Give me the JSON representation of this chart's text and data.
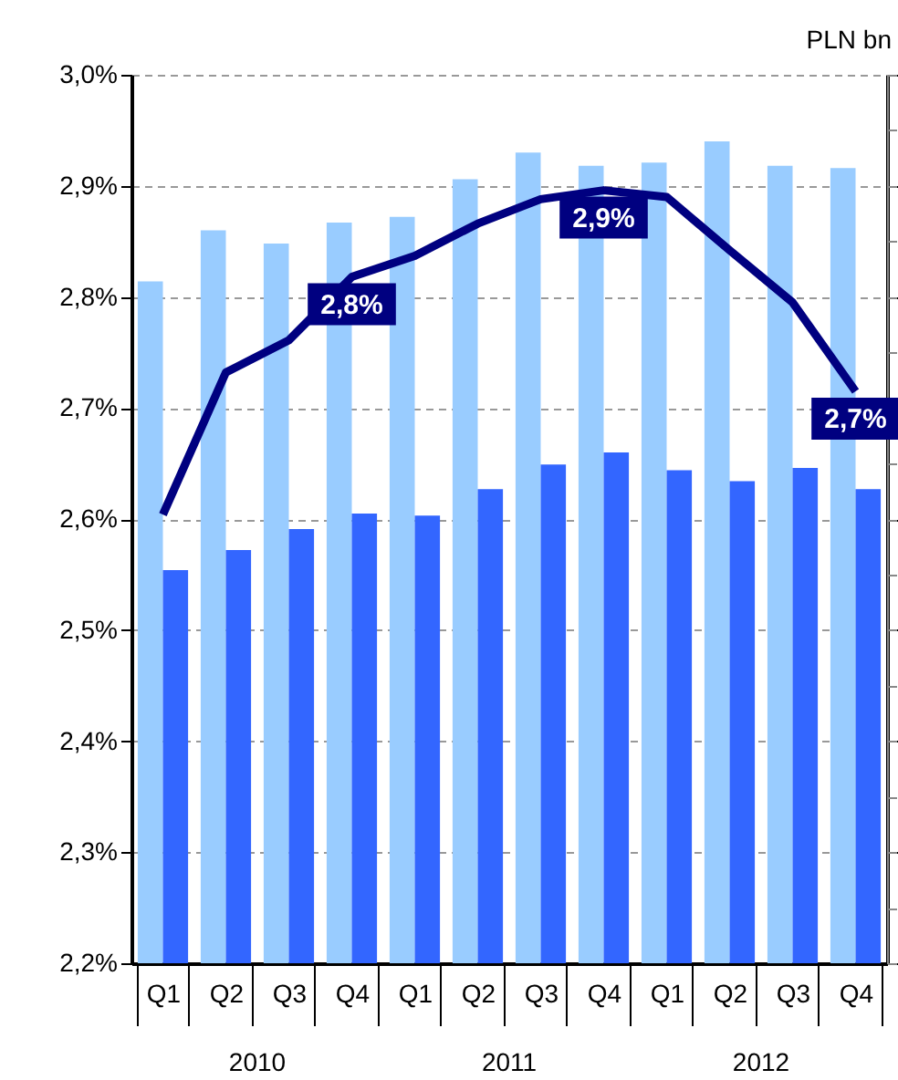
{
  "chart_data": {
    "type": "bar",
    "y2label": "PLN bn",
    "categories": [
      "Q1",
      "Q2",
      "Q3",
      "Q4",
      "Q1",
      "Q2",
      "Q3",
      "Q4",
      "Q1",
      "Q2",
      "Q3",
      "Q4"
    ],
    "series": [
      {
        "color": "#99ccff",
        "values": [
          2.814,
          2.86,
          2.848,
          2.867,
          2.872,
          2.906,
          2.93,
          2.918,
          2.921,
          2.94,
          2.918,
          2.916
        ]
      },
      {
        "color": "#3366ff",
        "values": [
          2.554,
          2.572,
          2.591,
          2.605,
          2.603,
          2.627,
          2.649,
          2.66,
          2.644,
          2.634,
          2.646,
          2.627
        ]
      },
      {
        "type": "line",
        "color": "#000080",
        "values": [
          2.604,
          2.732,
          2.761,
          2.818,
          2.837,
          2.866,
          2.888,
          2.896,
          2.89,
          2.842,
          2.795,
          2.715
        ],
        "value_labels": [
          null,
          null,
          null,
          "2,8%",
          null,
          null,
          null,
          "2,9%",
          null,
          null,
          null,
          "2,7%"
        ]
      }
    ],
    "ylim": [
      2.2,
      3.0
    ],
    "yticks": [
      {
        "value": 2.2,
        "label": "2,2%"
      },
      {
        "value": 2.3,
        "label": "2,3%"
      },
      {
        "value": 2.4,
        "label": "2,4%"
      },
      {
        "value": 2.5,
        "label": "2,5%"
      },
      {
        "value": 2.6,
        "label": "2,6%"
      },
      {
        "value": 2.7,
        "label": "2,7%"
      },
      {
        "value": 2.8,
        "label": "2,8%"
      },
      {
        "value": 2.9,
        "label": "2,9%"
      },
      {
        "value": 3.0,
        "label": "3,0%"
      }
    ],
    "grid": "y",
    "marker": "none",
    "line_style": "solid",
    "annotations": [
      "2010",
      "2011",
      "2012"
    ]
  }
}
